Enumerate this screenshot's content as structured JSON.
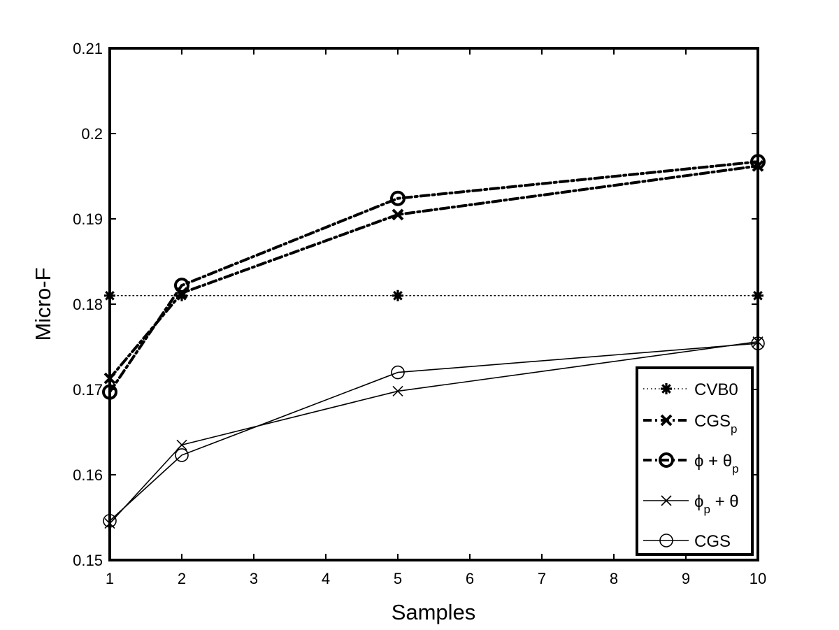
{
  "chart_data": {
    "type": "line",
    "title": "",
    "xlabel": "Samples",
    "ylabel": "Micro-F",
    "xlim": [
      1,
      10
    ],
    "ylim": [
      0.15,
      0.21
    ],
    "xticks": [
      1,
      2,
      3,
      4,
      5,
      6,
      7,
      8,
      9,
      10
    ],
    "yticks": [
      0.15,
      0.16,
      0.17,
      0.18,
      0.19,
      0.2,
      0.21
    ],
    "xtick_labels": [
      "1",
      "2",
      "3",
      "4",
      "5",
      "6",
      "7",
      "8",
      "9",
      "10"
    ],
    "ytick_labels": [
      "0.15",
      "0.16",
      "0.17",
      "0.18",
      "0.19",
      "0.2",
      "0.21"
    ],
    "grid": false,
    "legend_position": "bottom-right",
    "x": [
      1,
      2,
      5,
      10
    ],
    "series": [
      {
        "name": "CVB0",
        "label_main": "CVB0",
        "label_sub": "",
        "label_tail": "",
        "values": [
          0.181,
          0.181,
          0.181,
          0.181
        ],
        "line": "dotted",
        "marker": "asterisk",
        "bold": false
      },
      {
        "name": "CGSp",
        "label_main": "CGS",
        "label_sub": "p",
        "label_tail": "",
        "values": [
          0.1713,
          0.1813,
          0.1905,
          0.1962
        ],
        "line": "dashdot",
        "marker": "x",
        "bold": true
      },
      {
        "name": "ϕ + θp",
        "label_main": "ϕ + θ",
        "label_sub": "p",
        "label_tail": "",
        "values": [
          0.1697,
          0.1822,
          0.1924,
          0.1967
        ],
        "line": "dashdot",
        "marker": "circle",
        "bold": true
      },
      {
        "name": "ϕp + θ",
        "label_main": "ϕ",
        "label_sub": "p",
        "label_tail": " + θ",
        "values": [
          0.1543,
          0.1635,
          0.1698,
          0.1756
        ],
        "line": "solid",
        "marker": "x",
        "bold": false
      },
      {
        "name": "CGS",
        "label_main": "CGS",
        "label_sub": "",
        "label_tail": "",
        "values": [
          0.1546,
          0.1623,
          0.172,
          0.1754
        ],
        "line": "solid",
        "marker": "circle",
        "bold": false
      }
    ]
  }
}
